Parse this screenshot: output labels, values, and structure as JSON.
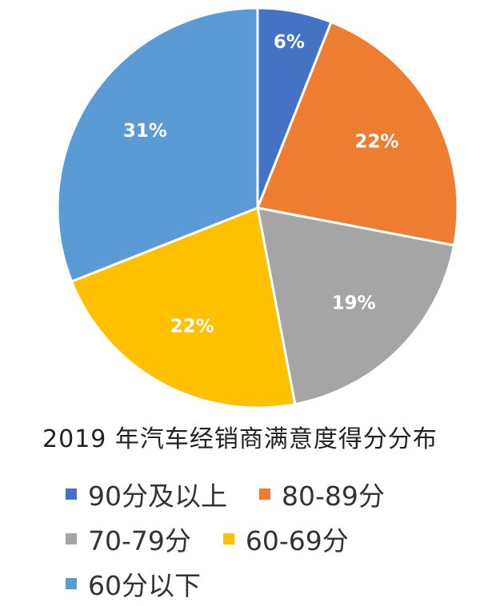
{
  "chart_data": {
    "type": "pie",
    "title": "2019 年汽车经销商满意度得分分布",
    "slices": [
      {
        "name": "90分及以上",
        "value": 6,
        "label": "6%",
        "color": "#4472C4"
      },
      {
        "name": "80-89分",
        "value": 22,
        "label": "22%",
        "color": "#ED7D31"
      },
      {
        "name": "70-79分",
        "value": 19,
        "label": "19%",
        "color": "#A5A5A5"
      },
      {
        "name": "60-69分",
        "value": 22,
        "label": "22%",
        "color": "#FFC000"
      },
      {
        "name": "60分以下",
        "value": 31,
        "label": "31%",
        "color": "#5B9BD5"
      }
    ],
    "legend_position": "bottom",
    "start_angle": "top",
    "direction": "clockwise"
  }
}
